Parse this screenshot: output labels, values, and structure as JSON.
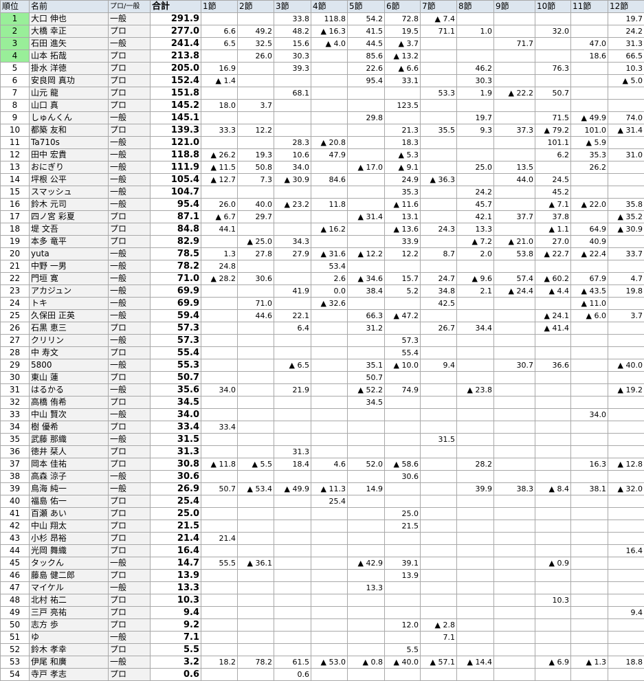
{
  "headers": {
    "rank": "順位",
    "name": "名前",
    "type": "プロ/一般",
    "total": "合計",
    "rounds": [
      "1節",
      "2節",
      "3節",
      "4節",
      "5節",
      "6節",
      "7節",
      "8節",
      "9節",
      "10節",
      "11節",
      "12節"
    ]
  },
  "colors": {
    "header_bg": "#dde6ef",
    "highlight": "#99ee99",
    "name_bg": "#f2f2f2"
  },
  "highlighted_ranks": [
    1,
    2,
    3,
    4
  ],
  "rows": [
    {
      "rank": "1",
      "name": "大口 伸也",
      "type": "一般",
      "total": "291.9",
      "scores": [
        "",
        "",
        "33.8",
        "118.8",
        "54.2",
        "72.8",
        "▲ 7.4",
        "",
        "",
        "",
        "",
        "19.7"
      ]
    },
    {
      "rank": "2",
      "name": "大橋 幸正",
      "type": "プロ",
      "total": "277.0",
      "scores": [
        "6.6",
        "49.2",
        "48.2",
        "▲ 16.3",
        "41.5",
        "19.5",
        "71.1",
        "1.0",
        "",
        "32.0",
        "",
        "24.2"
      ]
    },
    {
      "rank": "3",
      "name": "石田 進矢",
      "type": "一般",
      "total": "241.4",
      "scores": [
        "6.5",
        "32.5",
        "15.6",
        "▲ 4.0",
        "44.5",
        "▲ 3.7",
        "",
        "",
        "71.7",
        "",
        "47.0",
        "31.3"
      ]
    },
    {
      "rank": "4",
      "name": "山本 拓哉",
      "type": "プロ",
      "total": "213.8",
      "scores": [
        "",
        "26.0",
        "30.3",
        "",
        "85.6",
        "▲ 13.2",
        "",
        "",
        "",
        "",
        "18.6",
        "66.5"
      ]
    },
    {
      "rank": "5",
      "name": "掛水 洋徳",
      "type": "プロ",
      "total": "205.0",
      "scores": [
        "16.9",
        "",
        "39.3",
        "",
        "22.6",
        "▲ 6.6",
        "",
        "46.2",
        "",
        "76.3",
        "",
        "10.3"
      ]
    },
    {
      "rank": "6",
      "name": "安良岡 真功",
      "type": "プロ",
      "total": "152.4",
      "scores": [
        "▲ 1.4",
        "",
        "",
        "",
        "95.4",
        "33.1",
        "",
        "30.3",
        "",
        "",
        "",
        "▲ 5.0"
      ]
    },
    {
      "rank": "7",
      "name": "山元 龍",
      "type": "プロ",
      "total": "151.8",
      "scores": [
        "",
        "",
        "68.1",
        "",
        "",
        "",
        "53.3",
        "1.9",
        "▲ 22.2",
        "50.7",
        "",
        ""
      ]
    },
    {
      "rank": "8",
      "name": "山口 真",
      "type": "プロ",
      "total": "145.2",
      "scores": [
        "18.0",
        "3.7",
        "",
        "",
        "",
        "123.5",
        "",
        "",
        "",
        "",
        "",
        ""
      ]
    },
    {
      "rank": "9",
      "name": "しゅんくん",
      "type": "一般",
      "total": "145.1",
      "scores": [
        "",
        "",
        "",
        "",
        "29.8",
        "",
        "",
        "19.7",
        "",
        "71.5",
        "▲ 49.9",
        "74.0"
      ]
    },
    {
      "rank": "10",
      "name": "都築 友和",
      "type": "プロ",
      "total": "139.3",
      "scores": [
        "33.3",
        "12.2",
        "",
        "",
        "",
        "21.3",
        "35.5",
        "9.3",
        "37.3",
        "▲ 79.2",
        "101.0",
        "▲ 31.4"
      ]
    },
    {
      "rank": "11",
      "name": "Ta710s",
      "type": "一般",
      "total": "121.0",
      "scores": [
        "",
        "",
        "28.3",
        "▲ 20.8",
        "",
        "18.3",
        "",
        "",
        "",
        "101.1",
        "▲ 5.9",
        ""
      ]
    },
    {
      "rank": "12",
      "name": "田中 宏貴",
      "type": "一般",
      "total": "118.8",
      "scores": [
        "▲ 26.2",
        "19.3",
        "10.6",
        "47.9",
        "",
        "▲ 5.3",
        "",
        "",
        "",
        "6.2",
        "35.3",
        "31.0"
      ]
    },
    {
      "rank": "13",
      "name": "おにぎり",
      "type": "一般",
      "total": "111.9",
      "scores": [
        "▲ 11.5",
        "50.8",
        "34.0",
        "",
        "▲ 17.0",
        "▲ 9.1",
        "",
        "25.0",
        "13.5",
        "",
        "26.2",
        ""
      ]
    },
    {
      "rank": "14",
      "name": "坪根 公平",
      "type": "一般",
      "total": "105.4",
      "scores": [
        "▲ 12.7",
        "7.3",
        "▲ 30.9",
        "84.6",
        "",
        "24.9",
        "▲ 36.3",
        "",
        "44.0",
        "24.5",
        "",
        ""
      ]
    },
    {
      "rank": "15",
      "name": "スマッシュ",
      "type": "一般",
      "total": "104.7",
      "scores": [
        "",
        "",
        "",
        "",
        "",
        "35.3",
        "",
        "24.2",
        "",
        "45.2",
        "",
        ""
      ]
    },
    {
      "rank": "16",
      "name": "鈴木 元司",
      "type": "一般",
      "total": "95.4",
      "scores": [
        "26.0",
        "40.0",
        "▲ 23.2",
        "11.8",
        "",
        "▲ 11.6",
        "",
        "45.7",
        "",
        "▲ 7.1",
        "▲ 22.0",
        "35.8"
      ]
    },
    {
      "rank": "17",
      "name": "四ノ宮 彩夏",
      "type": "プロ",
      "total": "87.1",
      "scores": [
        "▲ 6.7",
        "29.7",
        "",
        "",
        "▲ 31.4",
        "13.1",
        "",
        "42.1",
        "37.7",
        "37.8",
        "",
        "▲ 35.2"
      ]
    },
    {
      "rank": "18",
      "name": "堤 文吾",
      "type": "プロ",
      "total": "84.8",
      "scores": [
        "44.1",
        "",
        "",
        "▲ 16.2",
        "",
        "▲ 13.6",
        "24.3",
        "13.3",
        "",
        "▲ 1.1",
        "64.9",
        "▲ 30.9"
      ]
    },
    {
      "rank": "19",
      "name": "本多 竜平",
      "type": "プロ",
      "total": "82.9",
      "scores": [
        "",
        "▲ 25.0",
        "34.3",
        "",
        "",
        "33.9",
        "",
        "▲ 7.2",
        "▲ 21.0",
        "27.0",
        "40.9",
        ""
      ]
    },
    {
      "rank": "20",
      "name": "yuta",
      "type": "一般",
      "total": "78.5",
      "scores": [
        "1.3",
        "27.8",
        "27.9",
        "▲ 31.6",
        "▲ 12.2",
        "12.2",
        "8.7",
        "2.0",
        "53.8",
        "▲ 22.7",
        "▲ 22.4",
        "33.7"
      ]
    },
    {
      "rank": "21",
      "name": "中野 一男",
      "type": "一般",
      "total": "78.2",
      "scores": [
        "24.8",
        "",
        "",
        "53.4",
        "",
        "",
        "",
        "",
        "",
        "",
        "",
        ""
      ]
    },
    {
      "rank": "22",
      "name": "門垣 寛",
      "type": "一般",
      "total": "71.0",
      "scores": [
        "▲ 28.2",
        "30.6",
        "",
        "2.6",
        "▲ 34.6",
        "15.7",
        "24.7",
        "▲ 9.6",
        "57.4",
        "▲ 60.2",
        "67.9",
        "4.7"
      ]
    },
    {
      "rank": "23",
      "name": "アカジュン",
      "type": "一般",
      "total": "69.9",
      "scores": [
        "",
        "",
        "41.9",
        "0.0",
        "38.4",
        "5.2",
        "34.8",
        "2.1",
        "▲ 24.4",
        "▲ 4.4",
        "▲ 43.5",
        "19.8"
      ]
    },
    {
      "rank": "24",
      "name": "トキ",
      "type": "一般",
      "total": "69.9",
      "scores": [
        "",
        "71.0",
        "",
        "▲ 32.6",
        "",
        "",
        "42.5",
        "",
        "",
        "",
        "▲ 11.0",
        ""
      ]
    },
    {
      "rank": "25",
      "name": "久保田 正英",
      "type": "一般",
      "total": "59.4",
      "scores": [
        "",
        "44.6",
        "22.1",
        "",
        "66.3",
        "▲ 47.2",
        "",
        "",
        "",
        "▲ 24.1",
        "▲ 6.0",
        "3.7"
      ]
    },
    {
      "rank": "26",
      "name": "石黒 恵三",
      "type": "プロ",
      "total": "57.3",
      "scores": [
        "",
        "",
        "6.4",
        "",
        "31.2",
        "",
        "26.7",
        "34.4",
        "",
        "▲ 41.4",
        "",
        ""
      ]
    },
    {
      "rank": "27",
      "name": "クリリン",
      "type": "一般",
      "total": "57.3",
      "scores": [
        "",
        "",
        "",
        "",
        "",
        "57.3",
        "",
        "",
        "",
        "",
        "",
        ""
      ]
    },
    {
      "rank": "28",
      "name": "中 寿文",
      "type": "プロ",
      "total": "55.4",
      "scores": [
        "",
        "",
        "",
        "",
        "",
        "55.4",
        "",
        "",
        "",
        "",
        "",
        ""
      ]
    },
    {
      "rank": "29",
      "name": "5800",
      "type": "一般",
      "total": "55.3",
      "scores": [
        "",
        "",
        "▲ 6.5",
        "",
        "35.1",
        "▲ 10.0",
        "9.4",
        "",
        "30.7",
        "36.6",
        "",
        "▲ 40.0"
      ]
    },
    {
      "rank": "30",
      "name": "東山 蓮",
      "type": "プロ",
      "total": "50.7",
      "scores": [
        "",
        "",
        "",
        "",
        "50.7",
        "",
        "",
        "",
        "",
        "",
        "",
        ""
      ]
    },
    {
      "rank": "31",
      "name": "はるかる",
      "type": "一般",
      "total": "35.6",
      "scores": [
        "34.0",
        "",
        "21.9",
        "",
        "▲ 52.2",
        "74.9",
        "",
        "▲ 23.8",
        "",
        "",
        "",
        "▲ 19.2"
      ]
    },
    {
      "rank": "32",
      "name": "高橋 侑希",
      "type": "プロ",
      "total": "34.5",
      "scores": [
        "",
        "",
        "",
        "",
        "34.5",
        "",
        "",
        "",
        "",
        "",
        "",
        ""
      ]
    },
    {
      "rank": "33",
      "name": "中山 賢次",
      "type": "一般",
      "total": "34.0",
      "scores": [
        "",
        "",
        "",
        "",
        "",
        "",
        "",
        "",
        "",
        "",
        "34.0",
        ""
      ]
    },
    {
      "rank": "34",
      "name": "樹 優希",
      "type": "プロ",
      "total": "33.4",
      "scores": [
        "33.4",
        "",
        "",
        "",
        "",
        "",
        "",
        "",
        "",
        "",
        "",
        ""
      ]
    },
    {
      "rank": "35",
      "name": "武藤 那織",
      "type": "一般",
      "total": "31.5",
      "scores": [
        "",
        "",
        "",
        "",
        "",
        "",
        "31.5",
        "",
        "",
        "",
        "",
        ""
      ]
    },
    {
      "rank": "36",
      "name": "徳井 栞人",
      "type": "プロ",
      "total": "31.3",
      "scores": [
        "",
        "",
        "31.3",
        "",
        "",
        "",
        "",
        "",
        "",
        "",
        "",
        ""
      ]
    },
    {
      "rank": "37",
      "name": "岡本 佳祐",
      "type": "プロ",
      "total": "30.8",
      "scores": [
        "▲ 11.8",
        "▲ 5.5",
        "18.4",
        "4.6",
        "52.0",
        "▲ 58.6",
        "",
        "28.2",
        "",
        "",
        "16.3",
        "▲ 12.8"
      ]
    },
    {
      "rank": "38",
      "name": "高森 涼子",
      "type": "一般",
      "total": "30.6",
      "scores": [
        "",
        "",
        "",
        "",
        "",
        "30.6",
        "",
        "",
        "",
        "",
        "",
        ""
      ]
    },
    {
      "rank": "39",
      "name": "鳥海 純一",
      "type": "一般",
      "total": "26.9",
      "scores": [
        "50.7",
        "▲ 53.4",
        "▲ 49.9",
        "▲ 11.3",
        "14.9",
        "",
        "",
        "39.9",
        "38.3",
        "▲ 8.4",
        "38.1",
        "▲ 32.0"
      ]
    },
    {
      "rank": "40",
      "name": "福島 佑一",
      "type": "プロ",
      "total": "25.4",
      "scores": [
        "",
        "",
        "",
        "25.4",
        "",
        "",
        "",
        "",
        "",
        "",
        "",
        ""
      ]
    },
    {
      "rank": "41",
      "name": "百瀬 あい",
      "type": "プロ",
      "total": "25.0",
      "scores": [
        "",
        "",
        "",
        "",
        "",
        "25.0",
        "",
        "",
        "",
        "",
        "",
        ""
      ]
    },
    {
      "rank": "42",
      "name": "中山 翔太",
      "type": "プロ",
      "total": "21.5",
      "scores": [
        "",
        "",
        "",
        "",
        "",
        "21.5",
        "",
        "",
        "",
        "",
        "",
        ""
      ]
    },
    {
      "rank": "43",
      "name": "小杉 昂裕",
      "type": "プロ",
      "total": "21.4",
      "scores": [
        "21.4",
        "",
        "",
        "",
        "",
        "",
        "",
        "",
        "",
        "",
        "",
        ""
      ]
    },
    {
      "rank": "44",
      "name": "光岡 舞織",
      "type": "プロ",
      "total": "16.4",
      "scores": [
        "",
        "",
        "",
        "",
        "",
        "",
        "",
        "",
        "",
        "",
        "",
        "16.4"
      ]
    },
    {
      "rank": "45",
      "name": "タックん",
      "type": "一般",
      "total": "14.7",
      "scores": [
        "55.5",
        "▲ 36.1",
        "",
        "",
        "▲ 42.9",
        "39.1",
        "",
        "",
        "",
        "▲ 0.9",
        "",
        ""
      ]
    },
    {
      "rank": "46",
      "name": "藤島 健二郎",
      "type": "プロ",
      "total": "13.9",
      "scores": [
        "",
        "",
        "",
        "",
        "",
        "13.9",
        "",
        "",
        "",
        "",
        "",
        ""
      ]
    },
    {
      "rank": "47",
      "name": "マイケル",
      "type": "一般",
      "total": "13.3",
      "scores": [
        "",
        "",
        "",
        "",
        "13.3",
        "",
        "",
        "",
        "",
        "",
        "",
        ""
      ]
    },
    {
      "rank": "48",
      "name": "北村 祐二",
      "type": "プロ",
      "total": "10.3",
      "scores": [
        "",
        "",
        "",
        "",
        "",
        "",
        "",
        "",
        "",
        "10.3",
        "",
        ""
      ]
    },
    {
      "rank": "49",
      "name": "三戸 亮祐",
      "type": "プロ",
      "total": "9.4",
      "scores": [
        "",
        "",
        "",
        "",
        "",
        "",
        "",
        "",
        "",
        "",
        "",
        "9.4"
      ]
    },
    {
      "rank": "50",
      "name": "志方 歩",
      "type": "プロ",
      "total": "9.2",
      "scores": [
        "",
        "",
        "",
        "",
        "",
        "12.0",
        "▲ 2.8",
        "",
        "",
        "",
        "",
        ""
      ]
    },
    {
      "rank": "51",
      "name": "ゆ",
      "type": "一般",
      "total": "7.1",
      "scores": [
        "",
        "",
        "",
        "",
        "",
        "",
        "7.1",
        "",
        "",
        "",
        "",
        ""
      ]
    },
    {
      "rank": "52",
      "name": "鈴木 孝幸",
      "type": "プロ",
      "total": "5.5",
      "scores": [
        "",
        "",
        "",
        "",
        "",
        "5.5",
        "",
        "",
        "",
        "",
        "",
        ""
      ]
    },
    {
      "rank": "53",
      "name": "伊尾 和廣",
      "type": "一般",
      "total": "3.2",
      "scores": [
        "18.2",
        "78.2",
        "61.5",
        "▲ 53.0",
        "▲ 0.8",
        "▲ 40.0",
        "▲ 57.1",
        "▲ 14.4",
        "",
        "▲ 6.9",
        "▲ 1.3",
        "18.8"
      ]
    },
    {
      "rank": "54",
      "name": "寺戸 孝志",
      "type": "プロ",
      "total": "0.6",
      "scores": [
        "",
        "",
        "0.6",
        "",
        "",
        "",
        "",
        "",
        "",
        "",
        "",
        ""
      ]
    }
  ]
}
